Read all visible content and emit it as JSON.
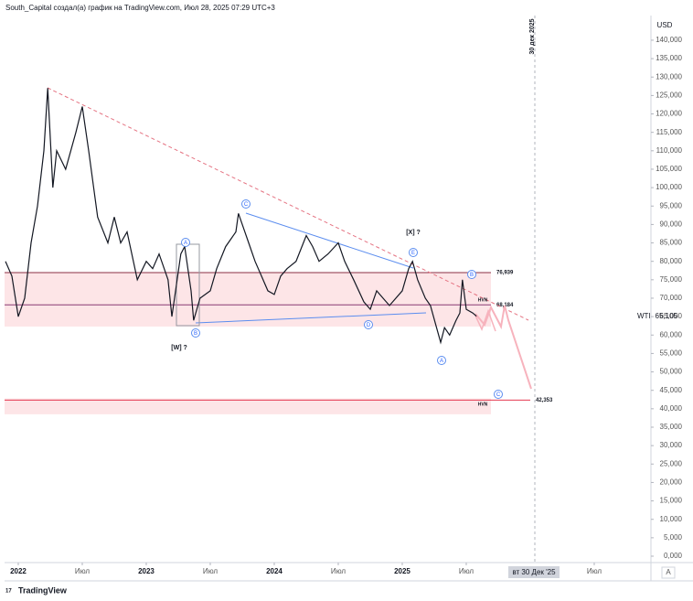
{
  "chart_data": {
    "type": "line",
    "header": "South_Capital создал(а) график на TradingView.com, Июл 28, 2025 07:29 UTC+3",
    "brand": "TradingView",
    "currency": "USD",
    "symbol": "WTI",
    "price_label": {
      "value": 65105,
      "label": "65,105"
    },
    "cursor_date_label": "вт 30 Дек '25",
    "vertical_line_label": "30 дек 2025",
    "scale_button": "A",
    "series": [
      {
        "name": "WTI",
        "color": "#131722",
        "x": [
          2021.9,
          2021.95,
          2022.0,
          2022.05,
          2022.1,
          2022.15,
          2022.2,
          2022.23,
          2022.27,
          2022.3,
          2022.37,
          2022.45,
          2022.5,
          2022.55,
          2022.62,
          2022.7,
          2022.75,
          2022.8,
          2022.85,
          2022.93,
          2023.0,
          2023.05,
          2023.1,
          2023.17,
          2023.2,
          2023.27,
          2023.3,
          2023.35,
          2023.37,
          2023.42,
          2023.5,
          2023.55,
          2023.62,
          2023.7,
          2023.72,
          2023.8,
          2023.85,
          2023.9,
          2023.95,
          2024.0,
          2024.05,
          2024.1,
          2024.17,
          2024.25,
          2024.3,
          2024.35,
          2024.42,
          2024.5,
          2024.55,
          2024.62,
          2024.7,
          2024.75,
          2024.8,
          2024.85,
          2024.9,
          2025.0,
          2025.05,
          2025.08,
          2025.12,
          2025.18,
          2025.22,
          2025.26,
          2025.3,
          2025.33,
          2025.37,
          2025.42,
          2025.45,
          2025.47,
          2025.5,
          2025.55,
          2025.58
        ],
        "values": [
          80000,
          76000,
          65000,
          70000,
          85000,
          95000,
          110000,
          127000,
          100000,
          110000,
          105000,
          115000,
          122000,
          110000,
          92000,
          85000,
          92000,
          85000,
          88000,
          75000,
          80000,
          78000,
          82000,
          75000,
          65000,
          82000,
          84000,
          72000,
          64000,
          70000,
          72000,
          78000,
          84000,
          88000,
          93000,
          85000,
          80000,
          76000,
          72000,
          71000,
          76000,
          78000,
          80000,
          87000,
          84000,
          80000,
          82000,
          85000,
          80000,
          75000,
          69000,
          67000,
          72000,
          70000,
          68000,
          72000,
          78000,
          80000,
          75000,
          70000,
          68000,
          63000,
          58000,
          62000,
          60000,
          64000,
          66000,
          75000,
          67000,
          66000,
          65105
        ]
      }
    ],
    "levels": [
      {
        "value": 76939,
        "label": "76,939",
        "color": "#8b2f45"
      },
      {
        "value": 68184,
        "label": "68,184",
        "color": "#8a3a72"
      },
      {
        "value": 42353,
        "label": "42,353",
        "color": "#e53950"
      }
    ],
    "zones": [
      [
        62300,
        76900
      ],
      [
        38500,
        42800
      ]
    ],
    "wave_labels": [
      "A",
      "B",
      "C",
      "D",
      "E",
      "A",
      "B",
      "C"
    ],
    "notes": [
      "[W] ?",
      "[X] ?",
      "HVN"
    ],
    "xlim": [
      2021.893,
      2026.943
    ],
    "xticks": [
      {
        "value": 2022,
        "label": "2022"
      },
      {
        "value": 2022.5,
        "label": "Июл"
      },
      {
        "value": 2023,
        "label": "2023"
      },
      {
        "value": 2023.5,
        "label": "Июл"
      },
      {
        "value": 2024,
        "label": "2024"
      },
      {
        "value": 2024.5,
        "label": "Июл"
      },
      {
        "value": 2025,
        "label": "2025"
      },
      {
        "value": 2025.5,
        "label": "Июл"
      },
      {
        "value": 2026.5,
        "label": "Июл"
      }
    ],
    "ylim": [
      -1737,
      146690
    ],
    "yticks": [
      {
        "value": 0,
        "label": "0,000"
      },
      {
        "value": 5000,
        "label": "5,000"
      },
      {
        "value": 10000,
        "label": "10,000"
      },
      {
        "value": 15000,
        "label": "15,000"
      },
      {
        "value": 20000,
        "label": "20,000"
      },
      {
        "value": 25000,
        "label": "25,000"
      },
      {
        "value": 30000,
        "label": "30,000"
      },
      {
        "value": 35000,
        "label": "35,000"
      },
      {
        "value": 40000,
        "label": "40,000"
      },
      {
        "value": 45000,
        "label": "45,000"
      },
      {
        "value": 50000,
        "label": "50,000"
      },
      {
        "value": 55000,
        "label": "55,000"
      },
      {
        "value": 60000,
        "label": "60,000"
      },
      {
        "value": 65000,
        "label": "65,000"
      },
      {
        "value": 70000,
        "label": "70,000"
      },
      {
        "value": 75000,
        "label": "75,000"
      },
      {
        "value": 80000,
        "label": "80,000"
      },
      {
        "value": 85000,
        "label": "85,000"
      },
      {
        "value": 90000,
        "label": "90,000"
      },
      {
        "value": 95000,
        "label": "95,000"
      },
      {
        "value": 100000,
        "label": "100,000"
      },
      {
        "value": 105000,
        "label": "105,000"
      },
      {
        "value": 110000,
        "label": "110,000"
      },
      {
        "value": 115000,
        "label": "115,000"
      },
      {
        "value": 120000,
        "label": "120,000"
      },
      {
        "value": 125000,
        "label": "125,000"
      },
      {
        "value": 130000,
        "label": "130,000"
      },
      {
        "value": 135000,
        "label": "135,000"
      },
      {
        "value": 140000,
        "label": "140,000"
      }
    ],
    "grid": false
  }
}
